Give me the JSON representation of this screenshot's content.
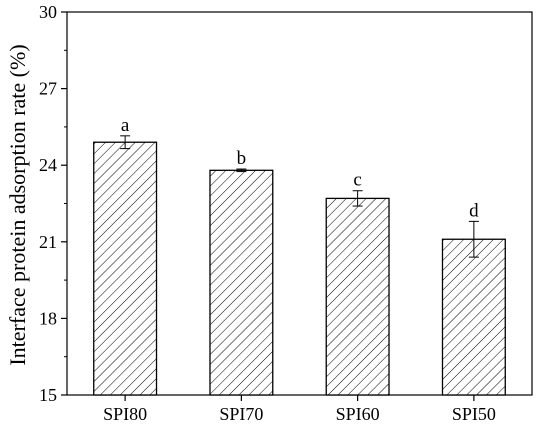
{
  "chart_data": {
    "type": "bar",
    "title": "",
    "xlabel": "",
    "ylabel": "Interface protein adsorption rate (%)",
    "categories": [
      "SPI80",
      "SPI70",
      "SPI60",
      "SPI50"
    ],
    "values": [
      24.9,
      23.8,
      22.7,
      21.1
    ],
    "errors": [
      0.25,
      0.05,
      0.3,
      0.7
    ],
    "significance_labels": [
      "a",
      "b",
      "c",
      "d"
    ],
    "ylim": [
      15,
      30
    ],
    "yticks": [
      "15",
      "18",
      "21",
      "24",
      "27",
      "30"
    ],
    "bar_fill": "diagonal-hatch",
    "grid": false,
    "legend": "none"
  }
}
